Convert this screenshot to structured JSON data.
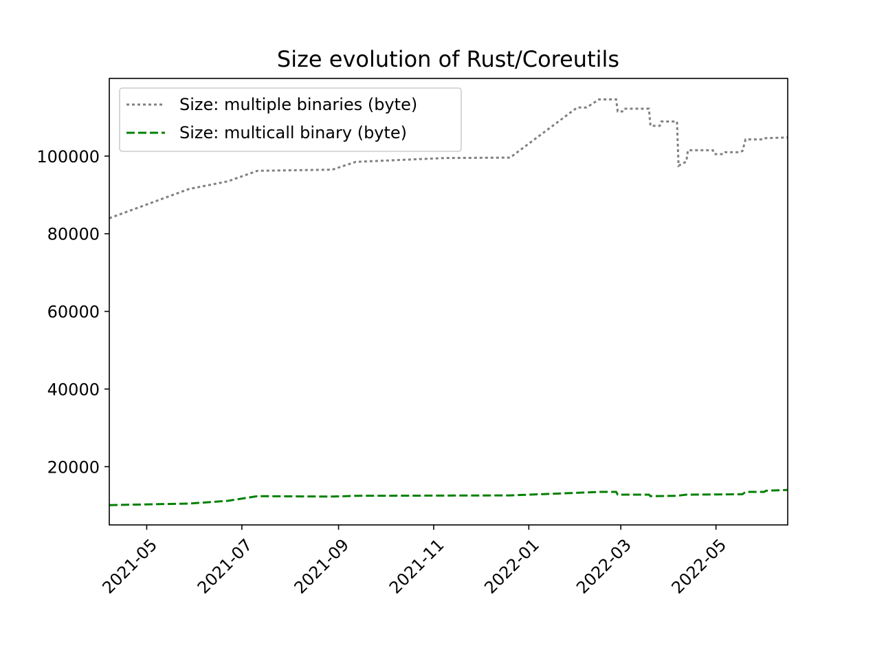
{
  "chart_data": {
    "type": "line",
    "title": "Size evolution of Rust/Coreutils",
    "xlabel": "",
    "ylabel": "",
    "x_scale": "date",
    "xlim": [
      "2021-04-07",
      "2022-06-16"
    ],
    "ylim": [
      5000,
      120000
    ],
    "grid": false,
    "legend_position": "top-left",
    "x_ticks": [
      "2021-05",
      "2021-07",
      "2021-09",
      "2021-11",
      "2022-01",
      "2022-03",
      "2022-05"
    ],
    "y_ticks": [
      20000,
      40000,
      60000,
      80000,
      100000
    ],
    "series": [
      {
        "name": "Size: multiple binaries (byte)",
        "color": "#808080",
        "style": "dotted",
        "points": [
          [
            "2021-04-07",
            84000
          ],
          [
            "2021-05-28",
            91500
          ],
          [
            "2021-06-22",
            93500
          ],
          [
            "2021-07-11",
            96200
          ],
          [
            "2021-08-28",
            96500
          ],
          [
            "2021-09-12",
            98500
          ],
          [
            "2021-11-08",
            99500
          ],
          [
            "2021-12-20",
            99600
          ],
          [
            "2022-02-01",
            112500
          ],
          [
            "2022-02-07",
            112500
          ],
          [
            "2022-02-15",
            114600
          ],
          [
            "2022-02-26",
            114600
          ],
          [
            "2022-02-27",
            111500
          ],
          [
            "2022-03-02",
            111500
          ],
          [
            "2022-03-03",
            112200
          ],
          [
            "2022-03-19",
            112200
          ],
          [
            "2022-03-20",
            107800
          ],
          [
            "2022-03-26",
            107800
          ],
          [
            "2022-03-27",
            108900
          ],
          [
            "2022-04-06",
            108900
          ],
          [
            "2022-04-07",
            97500
          ],
          [
            "2022-04-12",
            98600
          ],
          [
            "2022-04-13",
            101500
          ],
          [
            "2022-04-29",
            101500
          ],
          [
            "2022-04-30",
            100500
          ],
          [
            "2022-05-06",
            100500
          ],
          [
            "2022-05-07",
            101000
          ],
          [
            "2022-05-16",
            101000
          ],
          [
            "2022-05-18",
            101300
          ],
          [
            "2022-05-20",
            104300
          ],
          [
            "2022-05-31",
            104300
          ],
          [
            "2022-06-01",
            104600
          ],
          [
            "2022-06-16",
            104800
          ]
        ]
      },
      {
        "name": "Size: multicall binary (byte)",
        "color": "#008000",
        "style": "dashed",
        "points": [
          [
            "2021-04-07",
            10100
          ],
          [
            "2021-05-28",
            10500
          ],
          [
            "2021-06-22",
            11200
          ],
          [
            "2021-07-11",
            12400
          ],
          [
            "2021-08-28",
            12300
          ],
          [
            "2021-09-12",
            12500
          ],
          [
            "2021-12-20",
            12600
          ],
          [
            "2022-02-16",
            13500
          ],
          [
            "2022-02-26",
            13500
          ],
          [
            "2022-02-27",
            12800
          ],
          [
            "2022-03-19",
            12800
          ],
          [
            "2022-03-20",
            12400
          ],
          [
            "2022-04-06",
            12500
          ],
          [
            "2022-04-12",
            12800
          ],
          [
            "2022-05-18",
            12900
          ],
          [
            "2022-05-20",
            13500
          ],
          [
            "2022-06-01",
            13500
          ],
          [
            "2022-06-02",
            13800
          ],
          [
            "2022-06-16",
            14000
          ]
        ]
      }
    ]
  }
}
